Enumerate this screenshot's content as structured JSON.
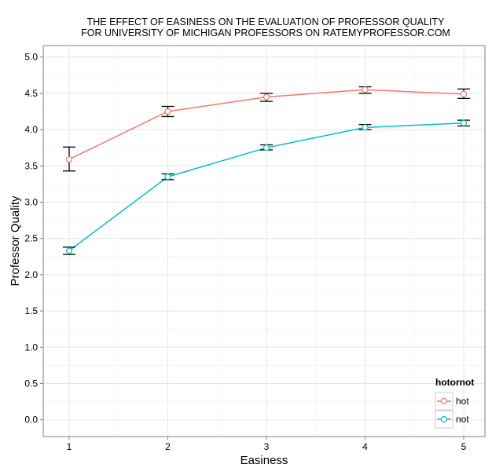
{
  "chart_data": {
    "type": "line",
    "title": "THE EFFECT OF EASINESS ON THE EVALUATION OF PROFESSOR QUALITY",
    "subtitle": "FOR UNIVERSITY OF MICHIGAN PROFESSORS ON RATEMYPROFESSOR.COM",
    "xlabel": "Easiness",
    "ylabel": "Professor Quality",
    "x": [
      1,
      2,
      3,
      4,
      5
    ],
    "xticks": [
      "1",
      "2",
      "3",
      "4",
      "5"
    ],
    "yticks": [
      "0.0",
      "0.5",
      "1.0",
      "1.5",
      "2.0",
      "2.5",
      "3.0",
      "3.5",
      "4.0",
      "4.5",
      "5.0"
    ],
    "xlim": [
      0.75,
      5.2
    ],
    "ylim": [
      -0.2,
      5.25
    ],
    "grid": true,
    "legend": {
      "title": "hotornot",
      "placement": "bottom-right"
    },
    "series": [
      {
        "name": "hot",
        "color": "#F8766D",
        "values": [
          3.59,
          4.25,
          4.45,
          4.55,
          4.49
        ],
        "lower": [
          3.43,
          4.18,
          4.39,
          4.5,
          4.43
        ],
        "upper": [
          3.76,
          4.32,
          4.5,
          4.59,
          4.56
        ]
      },
      {
        "name": "not",
        "color": "#00BFC4",
        "values": [
          2.33,
          3.35,
          3.75,
          4.03,
          4.09
        ],
        "lower": [
          2.28,
          3.31,
          3.72,
          4.0,
          4.05
        ],
        "upper": [
          2.38,
          3.39,
          3.79,
          4.07,
          4.13
        ]
      }
    ]
  }
}
